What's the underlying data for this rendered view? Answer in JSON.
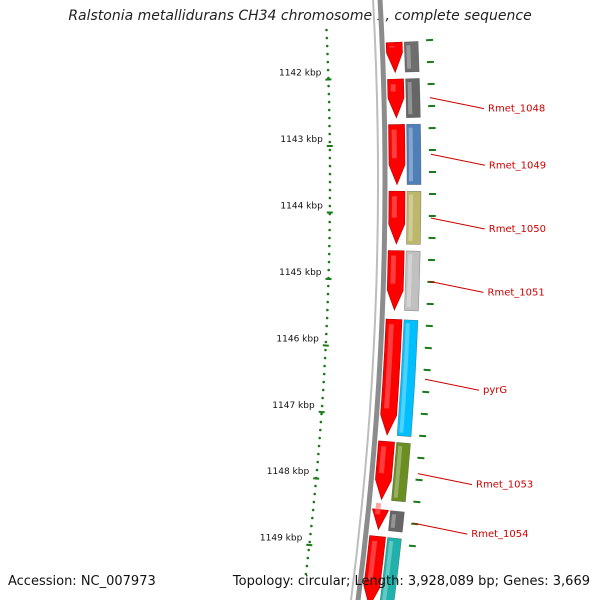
{
  "title": "Ralstonia metallidurans CH34 chromosome 1, complete sequence",
  "footer": {
    "accession": "Accession: NC_007973",
    "summary": "Topology: circular; Length: 3,928,089 bp; Genes: 3,669"
  },
  "colors": {
    "backbone": "#8c8c8c",
    "cds": "#ff0000",
    "label": "#cc0000",
    "gc_ticks": "#1a7a1a",
    "coordinate_ticks": "#1a7a1a"
  },
  "scale_ticks": [
    {
      "label": "1142 kbp",
      "kbp": 1142
    },
    {
      "label": "1143 kbp",
      "kbp": 1143
    },
    {
      "label": "1144 kbp",
      "kbp": 1144
    },
    {
      "label": "1145 kbp",
      "kbp": 1145
    },
    {
      "label": "1146 kbp",
      "kbp": 1146
    },
    {
      "label": "1147 kbp",
      "kbp": 1147
    },
    {
      "label": "1148 kbp",
      "kbp": 1148
    },
    {
      "label": "1149 kbp",
      "kbp": 1149
    }
  ],
  "genes": [
    {
      "label": "",
      "start_kbp": 1141.45,
      "end_kbp": 1141.9,
      "cog_color": "#6e6e6e"
    },
    {
      "label": "Rmet_1048",
      "start_kbp": 1142.0,
      "end_kbp": 1142.58,
      "cog_color": "#666666"
    },
    {
      "label": "Rmet_1049",
      "start_kbp": 1142.68,
      "end_kbp": 1143.58,
      "cog_color": "#4f7fb8"
    },
    {
      "label": "Rmet_1050",
      "start_kbp": 1143.68,
      "end_kbp": 1144.47,
      "cog_color": "#bdb76b"
    },
    {
      "label": "Rmet_1051",
      "start_kbp": 1144.57,
      "end_kbp": 1145.46,
      "cog_color": "#c0c0c0"
    },
    {
      "label": "pyrG",
      "start_kbp": 1145.6,
      "end_kbp": 1147.33,
      "cog_color": "#00bfff"
    },
    {
      "label": "Rmet_1053",
      "start_kbp": 1147.43,
      "end_kbp": 1148.3,
      "cog_color": "#6b8e23"
    },
    {
      "label": "Rmet_1054",
      "start_kbp": 1148.45,
      "end_kbp": 1148.75,
      "cog_color": "#666666"
    },
    {
      "label": "",
      "start_kbp": 1148.85,
      "end_kbp": 1149.9,
      "cog_color": "#20b2aa"
    }
  ]
}
